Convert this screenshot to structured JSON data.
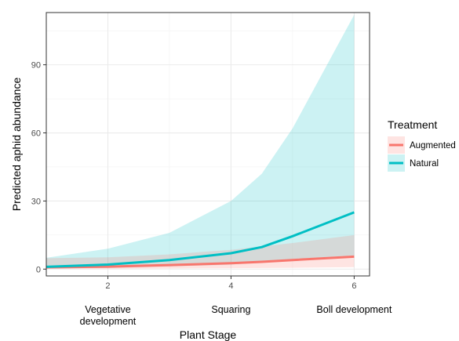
{
  "chart_data": {
    "type": "line",
    "xlabel": "Plant Stage",
    "ylabel": "Predicted aphid abundance",
    "xlim": [
      1.0,
      6.25
    ],
    "ylim": [
      -3,
      113
    ],
    "x_ticks": [
      2,
      4,
      6
    ],
    "y_ticks": [
      0,
      30,
      60,
      90
    ],
    "grid": true,
    "stage_labels": [
      {
        "x": 2,
        "lines": [
          "Vegetative",
          "development"
        ]
      },
      {
        "x": 4,
        "lines": [
          "Squaring"
        ]
      },
      {
        "x": 6,
        "lines": [
          "Boll development"
        ]
      }
    ],
    "legend": {
      "title": "Treatment",
      "placement": "right"
    },
    "series": [
      {
        "name": "Augmented",
        "color": "#F8766D",
        "x": [
          1,
          2,
          3,
          4,
          4.5,
          5,
          6
        ],
        "y": [
          0.8,
          1.1,
          1.8,
          2.6,
          3.2,
          4.0,
          5.5
        ],
        "lower": [
          0.1,
          0.2,
          0.3,
          0.4,
          0.5,
          0.6,
          0.9
        ],
        "upper": [
          4.8,
          5.2,
          6.5,
          8.5,
          10.0,
          11.5,
          15.0
        ]
      },
      {
        "name": "Natural",
        "color": "#00BFC4",
        "x": [
          1,
          2,
          3,
          4,
          4.5,
          5,
          6
        ],
        "y": [
          1.0,
          2.0,
          4.0,
          7.0,
          9.7,
          14.5,
          25.0
        ],
        "lower": [
          0.3,
          0.5,
          1.2,
          2.0,
          3.0,
          4.5,
          6.0
        ],
        "upper": [
          5.0,
          9.0,
          16.0,
          30.0,
          42.0,
          62.0,
          112.0
        ]
      }
    ]
  }
}
